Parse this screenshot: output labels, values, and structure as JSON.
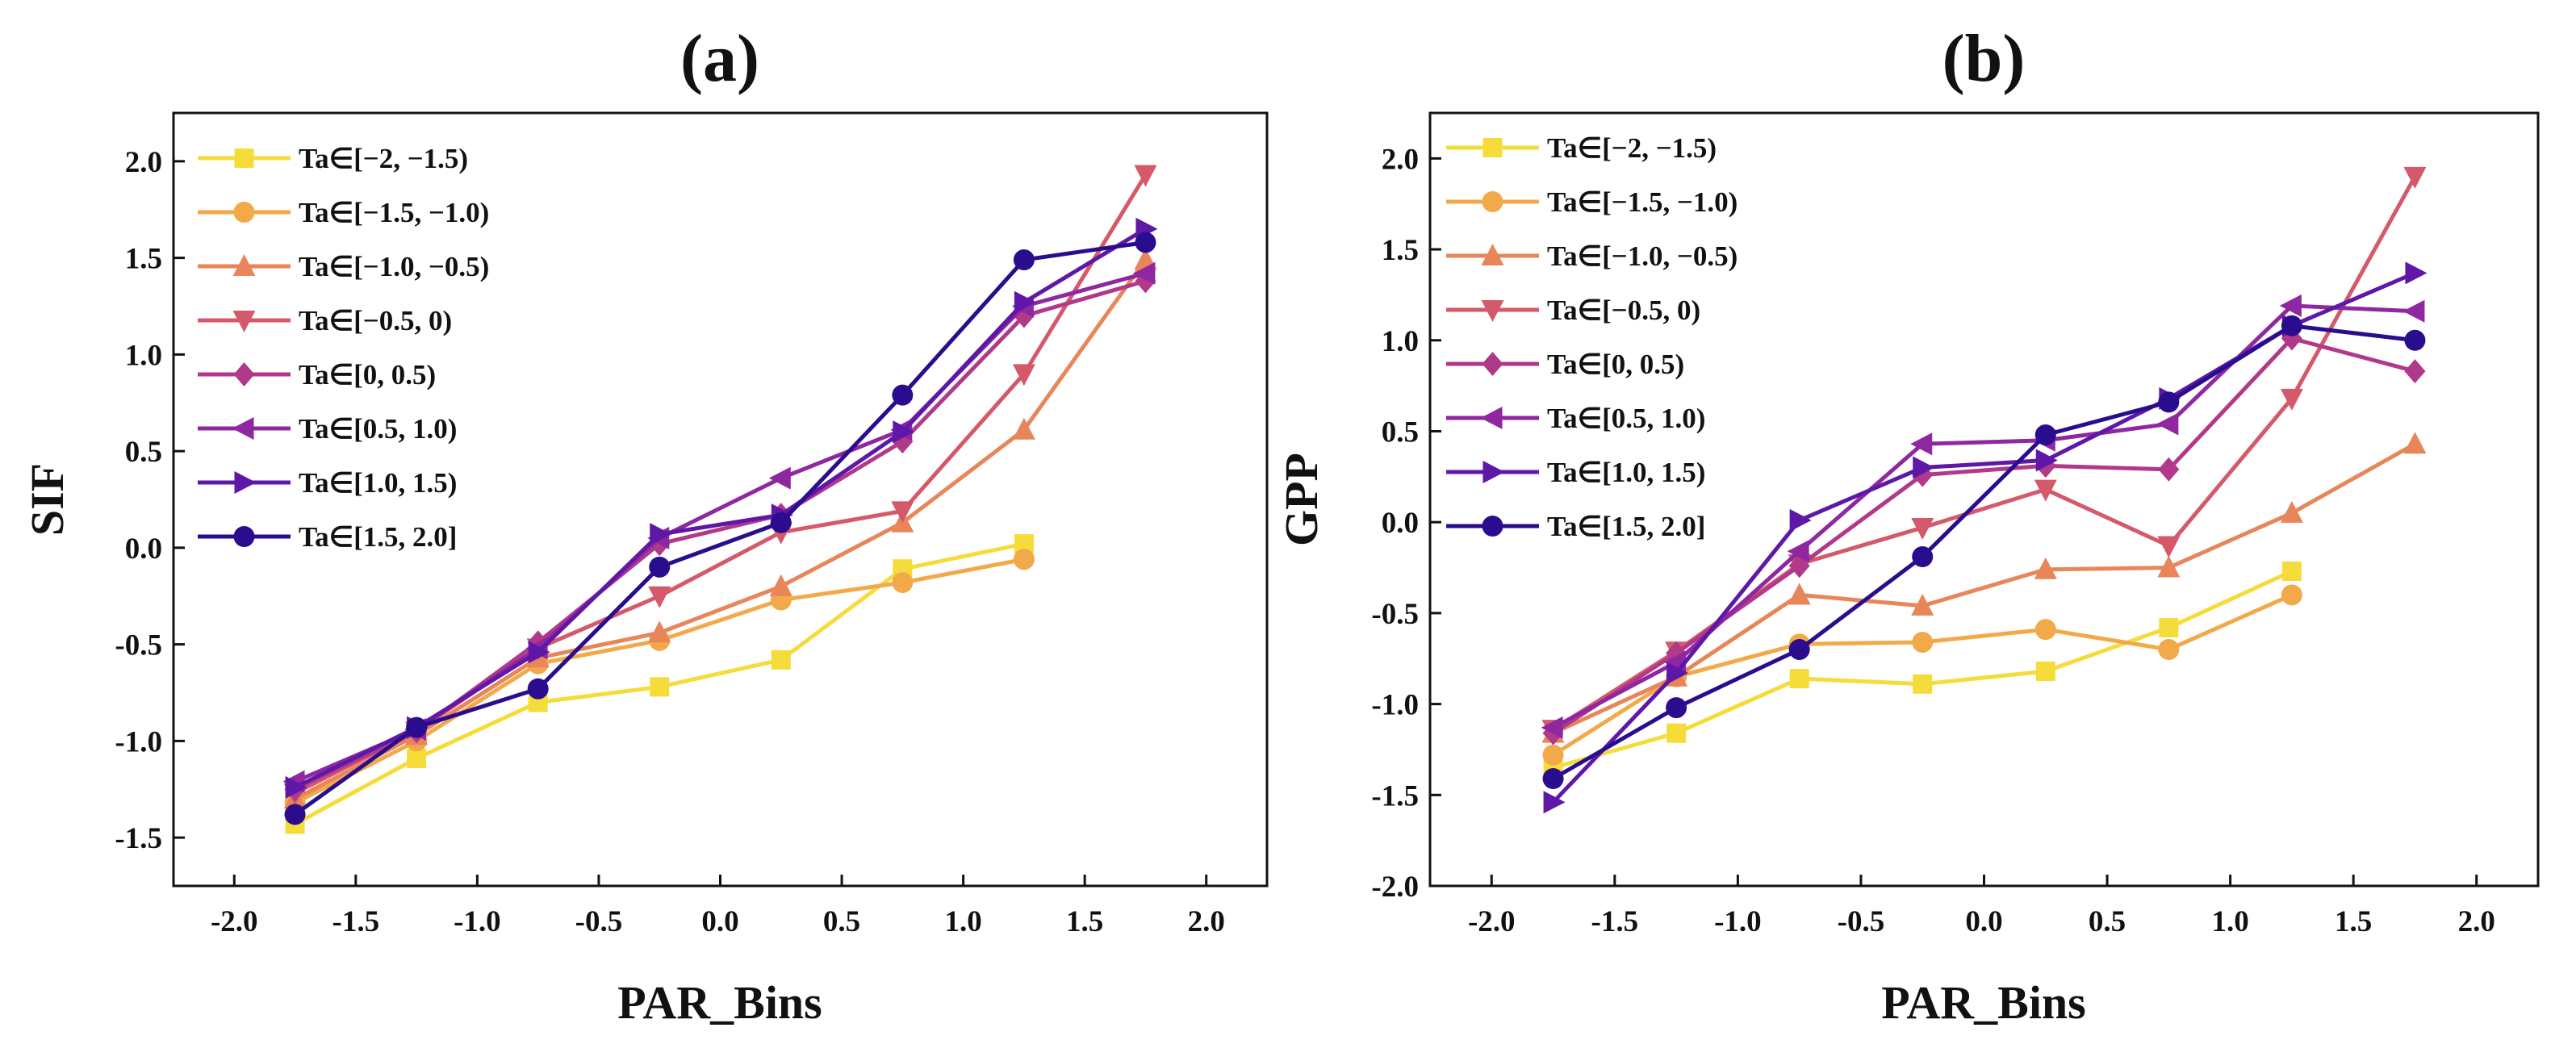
{
  "chart_data": [
    {
      "type": "line",
      "panel_label": "(a)",
      "xlabel": "PAR_Bins",
      "ylabel": "SIF",
      "xlim": [
        -2.25,
        2.25
      ],
      "ylim": [
        -1.75,
        2.25
      ],
      "xticks": [
        -2.0,
        -1.5,
        -1.0,
        -0.5,
        0.0,
        0.5,
        1.0,
        1.5,
        2.0
      ],
      "xtick_labels": [
        "-2.0",
        "-1.5",
        "-1.0",
        "-0.5",
        "0.0",
        "0.5",
        "1.0",
        "1.5",
        "2.0"
      ],
      "yticks": [
        -1.5,
        -1.0,
        -0.5,
        0.0,
        0.5,
        1.0,
        1.5,
        2.0
      ],
      "ytick_labels": [
        "-1.5",
        "-1.0",
        "-0.5",
        "0.0",
        "0.5",
        "1.0",
        "1.5",
        "2.0"
      ],
      "legend_position": "top-left",
      "x": [
        -1.75,
        -1.25,
        -0.75,
        -0.25,
        0.25,
        0.75,
        1.25,
        1.75
      ],
      "series": [
        {
          "name": "Ta∈[−2, −1.5)",
          "color": "#f5dc3a",
          "marker": "square",
          "values": [
            -1.43,
            -1.09,
            -0.8,
            -0.72,
            -0.58,
            -0.11,
            0.02,
            null
          ]
        },
        {
          "name": "Ta∈[−1.5, −1.0)",
          "color": "#f2a94a",
          "marker": "circle",
          "values": [
            -1.32,
            -1.0,
            -0.6,
            -0.48,
            -0.27,
            -0.18,
            -0.06,
            null
          ]
        },
        {
          "name": "Ta∈[−1.0, −0.5)",
          "color": "#e8865a",
          "marker": "triangle-up",
          "values": [
            -1.3,
            -0.97,
            -0.57,
            -0.44,
            -0.2,
            0.13,
            0.61,
            1.49
          ]
        },
        {
          "name": "Ta∈[−0.5,  0)",
          "color": "#d4596b",
          "marker": "triangle-down",
          "values": [
            -1.27,
            -0.95,
            -0.52,
            -0.25,
            0.08,
            0.19,
            0.9,
            1.93
          ]
        },
        {
          "name": "Ta∈[0, 0.5)",
          "color": "#b1398a",
          "marker": "diamond",
          "values": [
            -1.25,
            -0.95,
            -0.49,
            0.02,
            0.17,
            0.55,
            1.2,
            1.38
          ]
        },
        {
          "name": "Ta∈[0.5, 1.0)",
          "color": "#8e27a0",
          "marker": "triangle-left",
          "values": [
            -1.21,
            -0.94,
            -0.52,
            0.05,
            0.36,
            0.61,
            1.25,
            1.42
          ]
        },
        {
          "name": "Ta∈[1.0, 1.5)",
          "color": "#5f17a8",
          "marker": "triangle-right",
          "values": [
            -1.24,
            -0.93,
            -0.54,
            0.07,
            0.17,
            0.6,
            1.27,
            1.65
          ]
        },
        {
          "name": "Ta∈[1.5, 2.0]",
          "color": "#2a0d8e",
          "marker": "circle",
          "values": [
            -1.38,
            -0.93,
            -0.73,
            -0.1,
            0.13,
            0.79,
            1.49,
            1.58
          ]
        }
      ]
    },
    {
      "type": "line",
      "panel_label": "(b)",
      "xlabel": "PAR_Bins",
      "ylabel": "GPP",
      "xlim": [
        -2.25,
        2.25
      ],
      "ylim": [
        -2.0,
        2.25
      ],
      "xticks": [
        -2.0,
        -1.5,
        -1.0,
        -0.5,
        0.0,
        0.5,
        1.0,
        1.5,
        2.0
      ],
      "xtick_labels": [
        "-2.0",
        "-1.5",
        "-1.0",
        "-0.5",
        "0.0",
        "0.5",
        "1.0",
        "1.5",
        "2.0"
      ],
      "yticks": [
        -2.0,
        -1.5,
        -1.0,
        -0.5,
        0.0,
        0.5,
        1.0,
        1.5,
        2.0
      ],
      "ytick_labels": [
        "-2.0",
        "-1.5",
        "-1.0",
        "-0.5",
        "0.0",
        "0.5",
        "1.0",
        "1.5",
        "2.0"
      ],
      "legend_position": "top-left",
      "x": [
        -1.75,
        -1.25,
        -0.75,
        -0.25,
        0.25,
        0.75,
        1.25,
        1.75
      ],
      "series": [
        {
          "name": "Ta∈[−2, −1.5)",
          "color": "#f5dc3a",
          "marker": "square",
          "values": [
            -1.35,
            -1.16,
            -0.86,
            -0.89,
            -0.82,
            -0.58,
            -0.27,
            null
          ]
        },
        {
          "name": "Ta∈[−1.5, −1.0)",
          "color": "#f2a94a",
          "marker": "circle",
          "values": [
            -1.28,
            -0.85,
            -0.67,
            -0.66,
            -0.59,
            -0.7,
            -0.4,
            null
          ]
        },
        {
          "name": "Ta∈[−1.0, −0.5)",
          "color": "#e8865a",
          "marker": "triangle-up",
          "values": [
            -1.16,
            -0.85,
            -0.4,
            -0.46,
            -0.26,
            -0.25,
            0.05,
            0.43
          ]
        },
        {
          "name": "Ta∈[−0.5,  0)",
          "color": "#d4596b",
          "marker": "triangle-down",
          "values": [
            -1.14,
            -0.71,
            -0.23,
            -0.03,
            0.18,
            -0.13,
            0.68,
            1.9
          ]
        },
        {
          "name": "Ta∈[0, 0.5)",
          "color": "#b1398a",
          "marker": "diamond",
          "values": [
            -1.16,
            -0.72,
            -0.24,
            0.26,
            0.31,
            0.29,
            1.01,
            0.83
          ]
        },
        {
          "name": "Ta∈[0.5, 1.0)",
          "color": "#8e27a0",
          "marker": "triangle-left",
          "values": [
            -1.13,
            -0.77,
            -0.16,
            0.43,
            0.45,
            0.54,
            1.19,
            1.16
          ]
        },
        {
          "name": "Ta∈[1.0, 1.5)",
          "color": "#5f17a8",
          "marker": "triangle-right",
          "values": [
            -1.54,
            -0.83,
            0.01,
            0.3,
            0.34,
            0.68,
            1.08,
            1.37
          ]
        },
        {
          "name": "Ta∈[1.5, 2.0]",
          "color": "#2a0d8e",
          "marker": "circle",
          "values": [
            -1.41,
            -1.02,
            -0.7,
            -0.19,
            0.48,
            0.66,
            1.08,
            1.0
          ]
        }
      ]
    }
  ]
}
